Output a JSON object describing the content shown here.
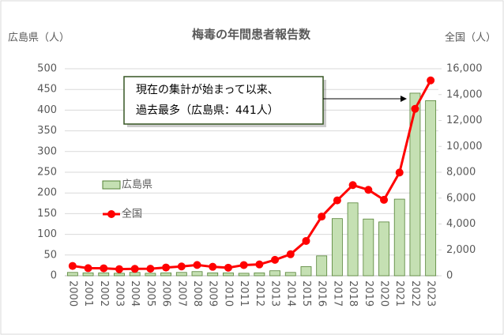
{
  "chart_data": {
    "type": "combo",
    "title": "梅毒の年間患者報告数",
    "y_label": "広島県（人）",
    "y2_label": "全国（人）",
    "annotation": [
      "現在の集計が始まって以来、",
      "過去最多（広島県：441人）"
    ],
    "categories": [
      "2000",
      "2001",
      "2002",
      "2003",
      "2004",
      "2005",
      "2006",
      "2007",
      "2008",
      "2009",
      "2010",
      "2011",
      "2012",
      "2013",
      "2014",
      "2015",
      "2016",
      "2017",
      "2018",
      "2019",
      "2020",
      "2021",
      "2022",
      "2023"
    ],
    "series": [
      {
        "name": "広島県",
        "type": "bar",
        "color": "#c5e0b3",
        "values": [
          8,
          7,
          7,
          6,
          8,
          6,
          7,
          8,
          10,
          7,
          7,
          6,
          7,
          12,
          8,
          22,
          48,
          138,
          176,
          137,
          130,
          185,
          441,
          423
        ]
      },
      {
        "name": "全国",
        "type": "line",
        "axis": "y2",
        "color": "#ff0000",
        "values": [
          759,
          585,
          575,
          509,
          533,
          543,
          637,
          719,
          831,
          691,
          621,
          827,
          875,
          1228,
          1661,
          2690,
          4575,
          5826,
          7007,
          6642,
          5867,
          7978,
          12900,
          15100
        ]
      }
    ],
    "ylim": [
      0,
      500
    ],
    "yticks": [
      0,
      50,
      100,
      150,
      200,
      250,
      300,
      350,
      400,
      450,
      500
    ],
    "y2lim": [
      0,
      16000
    ],
    "y2ticks": [
      0,
      {
        "value": 2000,
        "label": "2,000"
      },
      {
        "value": 4000,
        "label": "4,000"
      },
      {
        "value": 6000,
        "label": "6,000"
      },
      {
        "value": 8000,
        "label": "8,000"
      },
      {
        "value": 10000,
        "label": "10,000"
      },
      {
        "value": 12000,
        "label": "12,000"
      },
      {
        "value": 14000,
        "label": "14,000"
      },
      {
        "value": 16000,
        "label": "16,000"
      }
    ],
    "grid": true
  }
}
